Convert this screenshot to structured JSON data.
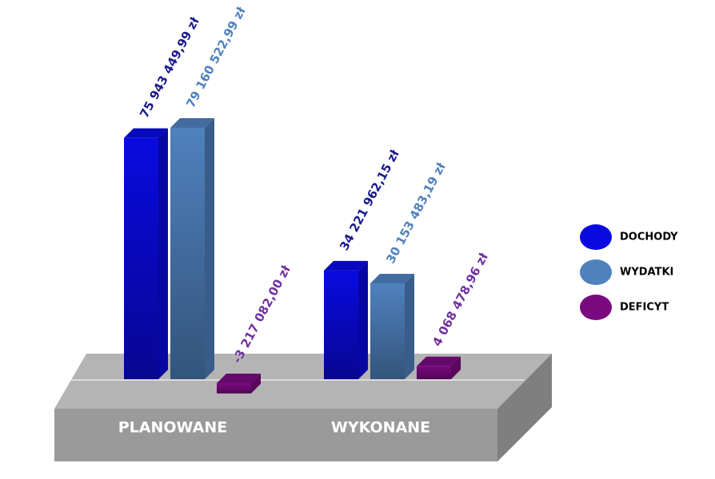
{
  "chart_data": {
    "type": "bar",
    "categories": [
      "PLANOWANE",
      "WYKONANE"
    ],
    "series": [
      {
        "name": "DOCHODY",
        "color": "#0a0ae0",
        "label_color": "#1a1a8c",
        "values": [
          75943449.99,
          34221962.15
        ],
        "value_labels": [
          "75 943 449,99 zł",
          "34 221 962,15 zł"
        ]
      },
      {
        "name": "WYDATKI",
        "color": "#4f81bd",
        "label_color": "#4f81bd",
        "values": [
          79160522.99,
          30153483.19
        ],
        "value_labels": [
          "79 160 522,99 zł",
          "30 153 483,19 zł"
        ]
      },
      {
        "name": "DEFICYT",
        "color": "#7a0a80",
        "label_color": "#7030a0",
        "values": [
          -3217082.0,
          4068478.96
        ],
        "value_labels": [
          "-3 217 082,00 zł",
          "4 068 478,96 zł"
        ]
      }
    ]
  }
}
